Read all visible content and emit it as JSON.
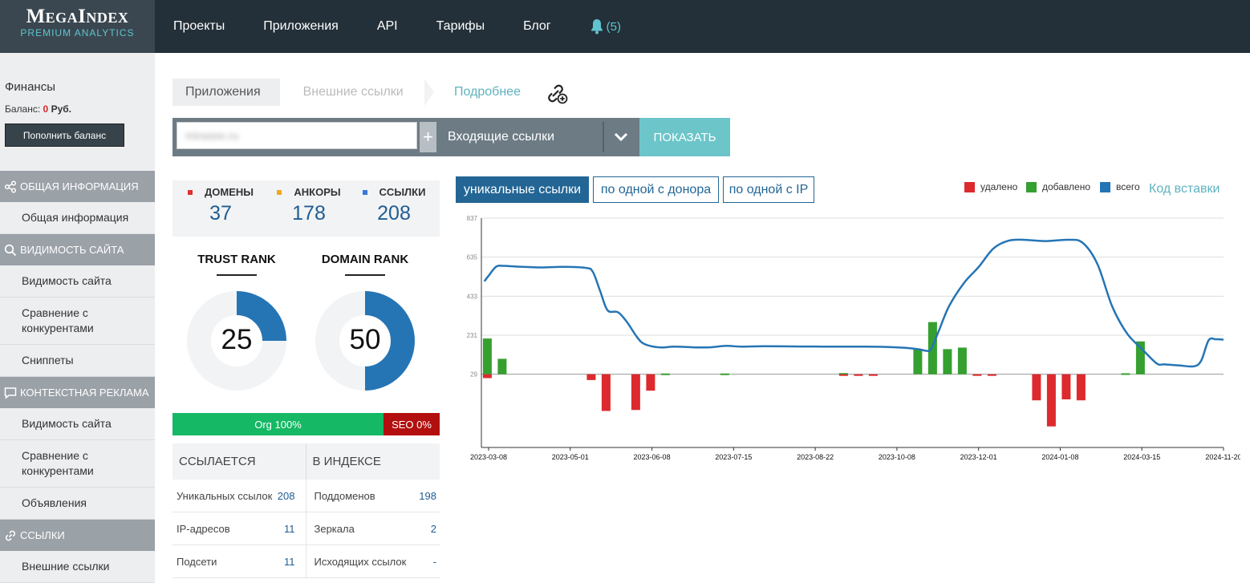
{
  "app": {
    "logo_title": "MegaIndex",
    "logo_subtitle": "PREMIUM ANALYTICS",
    "nav": [
      "Проекты",
      "Приложения",
      "API",
      "Тарифы",
      "Блог"
    ],
    "notifications": "(5)"
  },
  "finance": {
    "title": "Финансы",
    "balance_label": "Баланс:",
    "balance_value": "0",
    "currency": "Руб.",
    "topup_label": "Пополнить баланс"
  },
  "sidebar": {
    "sections": [
      {
        "title": "ОБЩАЯ ИНФОРМАЦИЯ",
        "icon": "share-icon",
        "items": [
          "Общая информация"
        ]
      },
      {
        "title": "ВИДИМОСТЬ САЙТА",
        "icon": "search-icon",
        "items": [
          "Видимость сайта",
          "Сравнение с конкурентами",
          "Сниппеты"
        ]
      },
      {
        "title": "КОНТЕКСТНАЯ РЕКЛАМА",
        "icon": "speech-bubble-icon",
        "items": [
          "Видимость сайта",
          "Сравнение с конкурентами",
          "Объявления"
        ]
      },
      {
        "title": "ССЫЛКИ",
        "icon": "chain-link-icon",
        "items": [
          "Внешние ссылки"
        ]
      }
    ]
  },
  "breadcrumbs": [
    "Приложения",
    "Внешние ссылки"
  ],
  "more_link": "Подробнее",
  "search": {
    "domain_value": "mirasee.ru",
    "plus_label": "+",
    "mode_label": "Входящие ссылки",
    "show_label": "ПОКАЗАТЬ"
  },
  "stats": [
    {
      "label": "ДОМЕНЫ",
      "value": "37",
      "color": "#e0302f"
    },
    {
      "label": "АНКОРЫ",
      "value": "178",
      "color": "#f2a81d"
    },
    {
      "label": "ССЫЛКИ",
      "value": "208",
      "color": "#3b78d8"
    }
  ],
  "ranks": [
    {
      "title": "TRUST RANK",
      "value": "25",
      "fraction": 0.25
    },
    {
      "title": "DOMAIN RANK",
      "value": "50",
      "fraction": 0.5
    }
  ],
  "org_seo": {
    "org_label": "Org 100%",
    "seo_label": "SEO 0%",
    "org_percent": 100,
    "seo_percent": 0
  },
  "links_table": {
    "headers": [
      "ССЫЛАЕТСЯ",
      "В ИНДЕКСЕ"
    ],
    "rows": [
      [
        {
          "label": "Уникальных ссылок",
          "value": "208"
        },
        {
          "label": "Поддоменов",
          "value": "198"
        }
      ],
      [
        {
          "label": "IP-адресов",
          "value": "11"
        },
        {
          "label": "Зеркала",
          "value": "2"
        }
      ],
      [
        {
          "label": "Подсети",
          "value": "11"
        },
        {
          "label": "Исходящих ссылок",
          "value": "-"
        }
      ]
    ]
  },
  "chart_tabs": [
    "уникальные ссылки",
    "по одной с донора",
    "по одной с IP"
  ],
  "legend": [
    {
      "label": "удалено",
      "color": "#dd2a2e"
    },
    {
      "label": "добавлено",
      "color": "#35a02f"
    },
    {
      "label": "всего",
      "color": "#2575b5"
    }
  ],
  "embed_link": "Код вставки",
  "chart_data": {
    "type": "bar+line",
    "y_ticks": [
      29,
      231,
      433,
      635,
      837
    ],
    "ylim": [
      -350,
      837
    ],
    "x_ticks": [
      "2023-03-08",
      "2023-05-01",
      "2023-06-08",
      "2023-07-15",
      "2023-08-22",
      "2023-10-08",
      "2023-12-01",
      "2024-01-08",
      "2024-03-15",
      "2024-11-20"
    ],
    "grid": true,
    "series": [
      {
        "name": "всего",
        "kind": "line",
        "color": "#2575b5",
        "points": [
          [
            0.2,
            510
          ],
          [
            0.5,
            540
          ],
          [
            1,
            586
          ],
          [
            1.5,
            590
          ],
          [
            2.5,
            586
          ],
          [
            4,
            582
          ],
          [
            5.5,
            585
          ],
          [
            7,
            580
          ],
          [
            7.5,
            560
          ],
          [
            8,
            460
          ],
          [
            8.5,
            360
          ],
          [
            9.2,
            350
          ],
          [
            9.8,
            300
          ],
          [
            10.5,
            220
          ],
          [
            11,
            185
          ],
          [
            12,
            168
          ],
          [
            13,
            172
          ],
          [
            14.5,
            168
          ],
          [
            15.5,
            169
          ],
          [
            16.5,
            176
          ],
          [
            17.5,
            172
          ],
          [
            19,
            174
          ],
          [
            21,
            173
          ],
          [
            23,
            172
          ],
          [
            25.5,
            172
          ],
          [
            27,
            171
          ],
          [
            28.5,
            166
          ],
          [
            29.5,
            158
          ],
          [
            30,
            150
          ],
          [
            30.3,
            160
          ],
          [
            30.8,
            250
          ],
          [
            31.5,
            380
          ],
          [
            32.5,
            500
          ],
          [
            33.5,
            584
          ],
          [
            34.5,
            680
          ],
          [
            35.5,
            720
          ],
          [
            36.5,
            725
          ],
          [
            38,
            718
          ],
          [
            39.5,
            725
          ],
          [
            40.5,
            710
          ],
          [
            41.5,
            600
          ],
          [
            42.5,
            380
          ],
          [
            43.5,
            240
          ],
          [
            44.5,
            160
          ],
          [
            45.5,
            85
          ],
          [
            46,
            80
          ],
          [
            47,
            75
          ],
          [
            48,
            70
          ],
          [
            48.5,
            100
          ],
          [
            49,
            205
          ],
          [
            49.5,
            210
          ],
          [
            50,
            208
          ]
        ]
      },
      {
        "name": "добавлено",
        "kind": "bar",
        "color": "#35a02f",
        "bars": [
          [
            0.4,
            185
          ],
          [
            1.4,
            80
          ],
          [
            12.4,
            4
          ],
          [
            16.4,
            4
          ],
          [
            24.4,
            6
          ],
          [
            29.4,
            130
          ],
          [
            30.4,
            270
          ],
          [
            31.4,
            130
          ],
          [
            32.4,
            138
          ],
          [
            43.4,
            5
          ],
          [
            44.4,
            170
          ]
        ]
      },
      {
        "name": "удалено",
        "kind": "bar",
        "color": "#dd2a2e",
        "bars": [
          [
            0.4,
            -20
          ],
          [
            7.4,
            -30
          ],
          [
            8.4,
            -190
          ],
          [
            10.4,
            -185
          ],
          [
            11.4,
            -85
          ],
          [
            24.4,
            -8
          ],
          [
            25.4,
            -8
          ],
          [
            26.4,
            -4
          ],
          [
            33.4,
            -4
          ],
          [
            34.4,
            -4
          ],
          [
            37.4,
            -135
          ],
          [
            38.4,
            -270
          ],
          [
            39.4,
            -130
          ],
          [
            40.4,
            -135
          ]
        ]
      }
    ]
  }
}
